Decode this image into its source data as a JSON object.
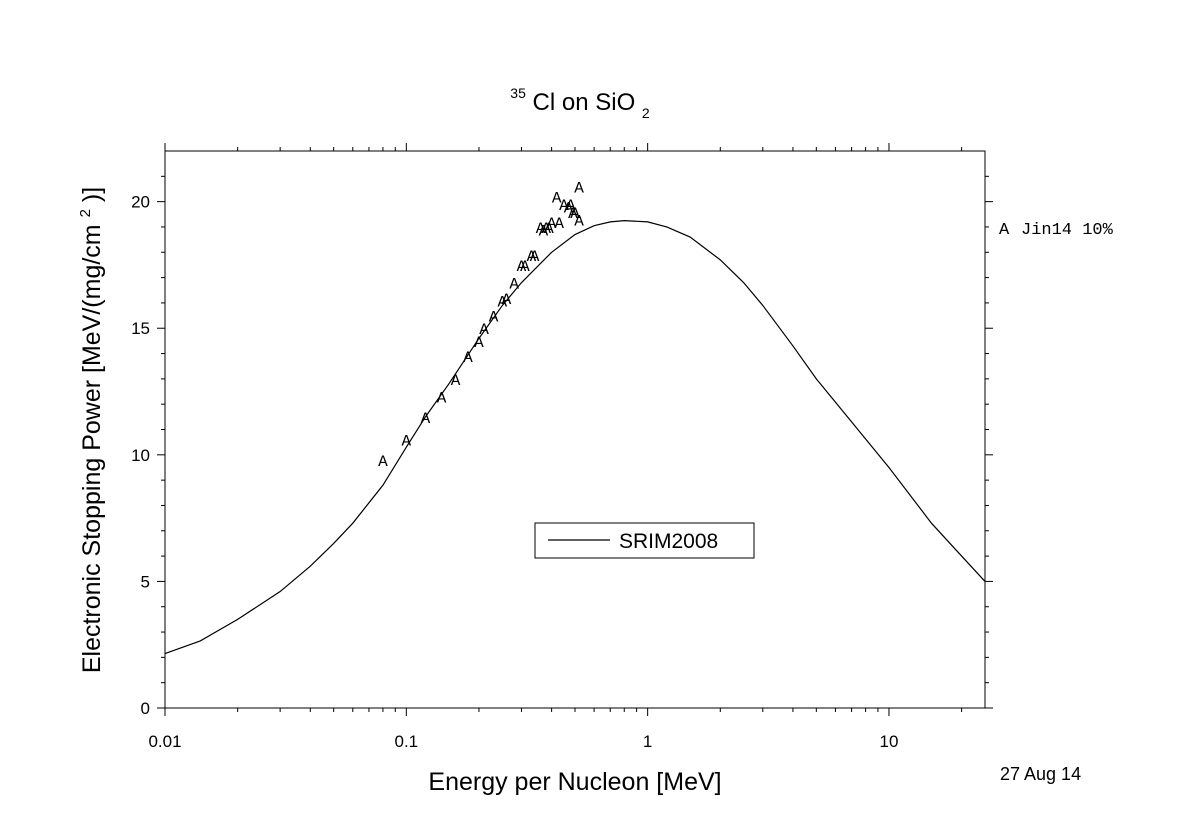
{
  "chart_data": {
    "type": "line",
    "title": {
      "superscript": "35",
      "ion": "Cl on SiO",
      "subscript": "2"
    },
    "xlabel": "Energy per Nucleon [MeV]",
    "ylabel": {
      "main": "Electronic Stopping Power [MeV/(mg/cm",
      "superscript": "2",
      "tail": ")]"
    },
    "x_scale": "log",
    "xlim": [
      0.01,
      25
    ],
    "ylim": [
      0,
      22
    ],
    "x_ticks": [
      {
        "value": 0.01,
        "label": "0.01"
      },
      {
        "value": 0.1,
        "label": "0.1"
      },
      {
        "value": 1,
        "label": "1"
      },
      {
        "value": 10,
        "label": "10"
      }
    ],
    "y_ticks": [
      {
        "value": 0,
        "label": "0"
      },
      {
        "value": 5,
        "label": "5"
      },
      {
        "value": 10,
        "label": "10"
      },
      {
        "value": 15,
        "label": "15"
      },
      {
        "value": 20,
        "label": "20"
      }
    ],
    "grid": false,
    "series": [
      {
        "name": "SRIM2008",
        "kind": "line",
        "color": "#000000",
        "x": [
          0.01,
          0.014,
          0.02,
          0.03,
          0.04,
          0.05,
          0.06,
          0.08,
          0.1,
          0.12,
          0.15,
          0.2,
          0.25,
          0.3,
          0.4,
          0.5,
          0.6,
          0.7,
          0.8,
          1.0,
          1.2,
          1.5,
          2.0,
          2.5,
          3.0,
          4.0,
          5.0,
          7.0,
          10.0,
          15.0,
          20.0,
          25.0
        ],
        "y": [
          2.15,
          2.65,
          3.5,
          4.6,
          5.6,
          6.5,
          7.3,
          8.8,
          10.3,
          11.5,
          12.8,
          14.6,
          15.9,
          16.8,
          18.0,
          18.7,
          19.05,
          19.2,
          19.25,
          19.2,
          19.0,
          18.6,
          17.7,
          16.8,
          15.9,
          14.3,
          13.0,
          11.3,
          9.5,
          7.3,
          6.0,
          5.0
        ]
      },
      {
        "name": "Jin14 10%",
        "kind": "scatter",
        "marker": "A",
        "x": [
          0.08,
          0.1,
          0.12,
          0.14,
          0.16,
          0.18,
          0.2,
          0.21,
          0.23,
          0.25,
          0.26,
          0.28,
          0.3,
          0.31,
          0.33,
          0.34,
          0.36,
          0.37,
          0.38,
          0.39,
          0.4,
          0.42,
          0.43,
          0.45,
          0.47,
          0.48,
          0.49,
          0.5,
          0.52,
          0.52
        ],
        "y": [
          9.8,
          10.6,
          11.5,
          12.3,
          13.0,
          13.9,
          14.5,
          15.0,
          15.5,
          16.1,
          16.2,
          16.8,
          17.5,
          17.5,
          17.9,
          17.9,
          19.0,
          18.9,
          19.0,
          19.0,
          19.2,
          20.2,
          19.2,
          19.9,
          19.8,
          19.9,
          19.6,
          19.6,
          20.6,
          19.3
        ]
      }
    ],
    "legend": {
      "placement": "center, inside plot",
      "entries": [
        "SRIM2008"
      ]
    },
    "side_legend": {
      "marker": "A",
      "label": "Jin14 10%"
    },
    "date": "27 Aug 14"
  }
}
